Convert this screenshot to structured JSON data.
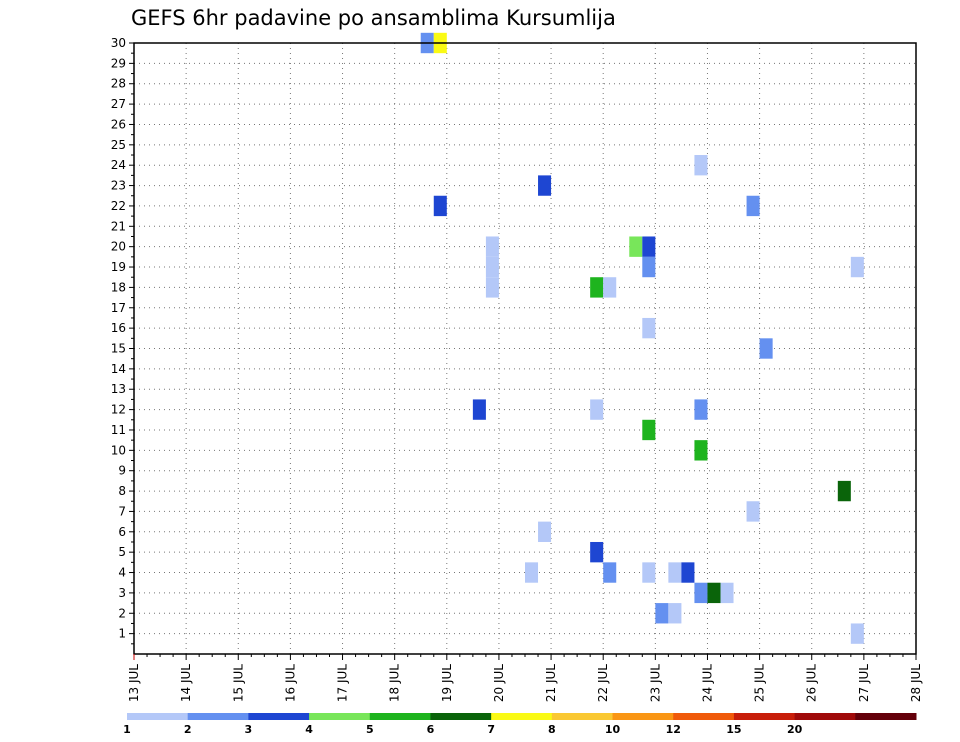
{
  "chart_data": {
    "type": "heatmap",
    "title": "GEFS 6hr padavine po ansamblima Kursumlija",
    "xlabel": "",
    "ylabel": "",
    "x_tick_labels": [
      "13 JUL",
      "14 JUL",
      "15 JUL",
      "16 JUL",
      "17 JUL",
      "18 JUL",
      "19 JUL",
      "20 JUL",
      "21 JUL",
      "22 JUL",
      "23 JUL",
      "24 JUL",
      "25 JUL",
      "26 JUL",
      "27 JUL",
      "28 JUL"
    ],
    "y_tick_labels": [
      "1",
      "2",
      "3",
      "4",
      "5",
      "6",
      "7",
      "8",
      "9",
      "10",
      "11",
      "12",
      "13",
      "14",
      "15",
      "16",
      "17",
      "18",
      "19",
      "20",
      "21",
      "22",
      "23",
      "24",
      "25",
      "26",
      "27",
      "28",
      "29",
      "30"
    ],
    "xlim_days": [
      13,
      28
    ],
    "ylim": [
      0,
      30
    ],
    "grid": true,
    "colorbar": {
      "labels": [
        "1",
        "2",
        "3",
        "4",
        "5",
        "6",
        "7",
        "8",
        "10",
        "12",
        "15",
        "20"
      ],
      "colors": [
        "#b4c8f8",
        "#6490f0",
        "#1e46d2",
        "#78e65a",
        "#1eb41e",
        "#0a640a",
        "#fafa14",
        "#fac832",
        "#fa9614",
        "#f05a0a",
        "#c81e0a",
        "#a00a0a",
        "#64000a"
      ]
    },
    "cells": [
      {
        "day": 18.5,
        "member": 30,
        "class": 2
      },
      {
        "day": 18.75,
        "member": 30,
        "class": 7
      },
      {
        "day": 18.75,
        "member": 22,
        "class": 3
      },
      {
        "day": 19.75,
        "member": 20,
        "class": 1
      },
      {
        "day": 19.75,
        "member": 19,
        "class": 1
      },
      {
        "day": 19.75,
        "member": 18,
        "class": 1
      },
      {
        "day": 19.5,
        "member": 12,
        "class": 3
      },
      {
        "day": 20.75,
        "member": 23,
        "class": 3
      },
      {
        "day": 20.5,
        "member": 4,
        "class": 1
      },
      {
        "day": 20.75,
        "member": 6,
        "class": 1
      },
      {
        "day": 21.75,
        "member": 18,
        "class": 5
      },
      {
        "day": 22.0,
        "member": 18,
        "class": 1
      },
      {
        "day": 21.75,
        "member": 12,
        "class": 1
      },
      {
        "day": 21.75,
        "member": 5,
        "class": 3
      },
      {
        "day": 22.0,
        "member": 4,
        "class": 2
      },
      {
        "day": 22.5,
        "member": 20,
        "class": 4
      },
      {
        "day": 22.75,
        "member": 20,
        "class": 3
      },
      {
        "day": 22.75,
        "member": 19,
        "class": 2
      },
      {
        "day": 22.75,
        "member": 16,
        "class": 1
      },
      {
        "day": 22.75,
        "member": 11,
        "class": 5
      },
      {
        "day": 22.75,
        "member": 4,
        "class": 1
      },
      {
        "day": 23.0,
        "member": 2,
        "class": 2
      },
      {
        "day": 23.25,
        "member": 2,
        "class": 1
      },
      {
        "day": 23.25,
        "member": 4,
        "class": 1
      },
      {
        "day": 23.5,
        "member": 4,
        "class": 3
      },
      {
        "day": 23.75,
        "member": 24,
        "class": 1
      },
      {
        "day": 23.75,
        "member": 12,
        "class": 2
      },
      {
        "day": 23.75,
        "member": 10,
        "class": 5
      },
      {
        "day": 23.75,
        "member": 3,
        "class": 2
      },
      {
        "day": 24.0,
        "member": 3,
        "class": 6
      },
      {
        "day": 24.25,
        "member": 3,
        "class": 1
      },
      {
        "day": 24.75,
        "member": 22,
        "class": 2
      },
      {
        "day": 24.75,
        "member": 7,
        "class": 1
      },
      {
        "day": 25.0,
        "member": 15,
        "class": 2
      },
      {
        "day": 26.5,
        "member": 8,
        "class": 6
      },
      {
        "day": 26.75,
        "member": 19,
        "class": 1
      },
      {
        "day": 26.75,
        "member": 1,
        "class": 1
      }
    ]
  }
}
